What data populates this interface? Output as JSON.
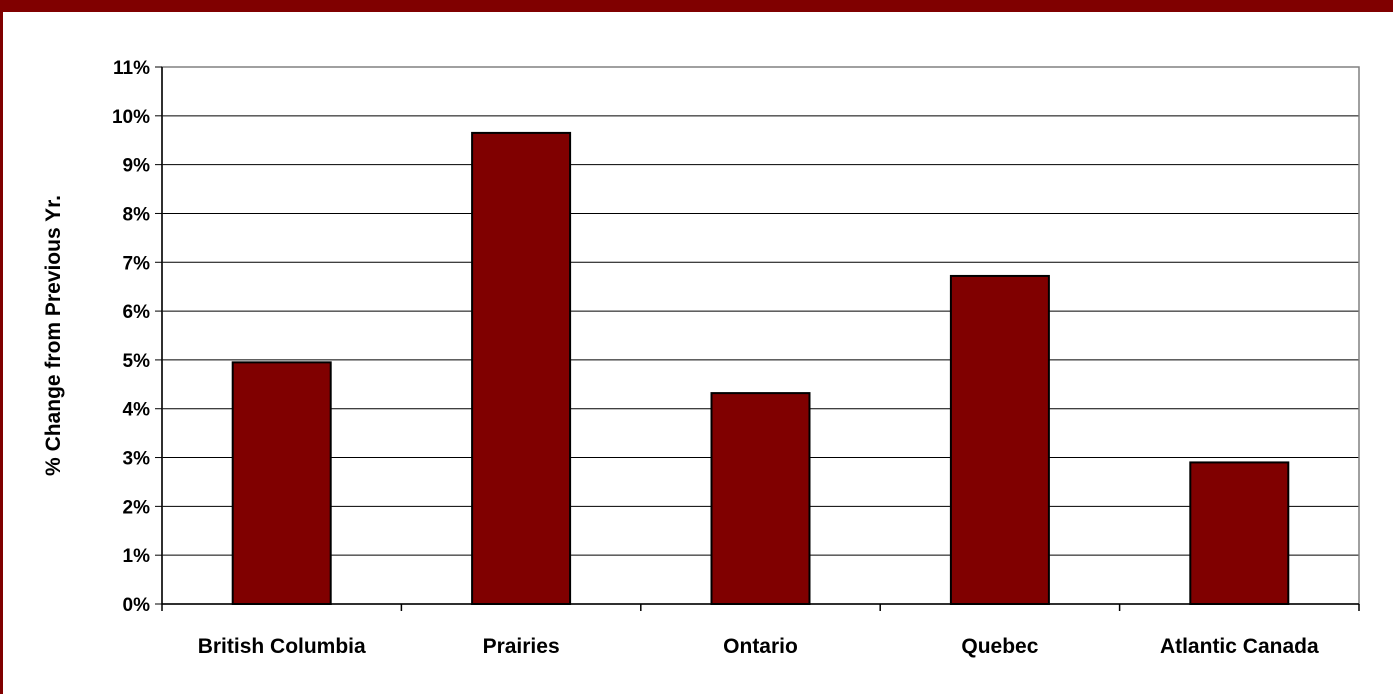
{
  "theme": {
    "accent": "#800000",
    "bar_fill": "#800000",
    "bar_stroke": "#000000",
    "grid": "#000000"
  },
  "chart_data": {
    "type": "bar",
    "title": "",
    "xlabel": "",
    "ylabel": "% Change from Previous Yr.",
    "categories": [
      "British Columbia",
      "Prairies",
      "Ontario",
      "Quebec",
      "Atlantic Canada"
    ],
    "values": [
      4.95,
      9.65,
      4.32,
      6.72,
      2.9
    ],
    "ylim": [
      0,
      11
    ],
    "yticks": [
      "0%",
      "1%",
      "2%",
      "3%",
      "4%",
      "5%",
      "6%",
      "7%",
      "8%",
      "9%",
      "10%",
      "11%"
    ],
    "grid": true,
    "legend": "none"
  }
}
